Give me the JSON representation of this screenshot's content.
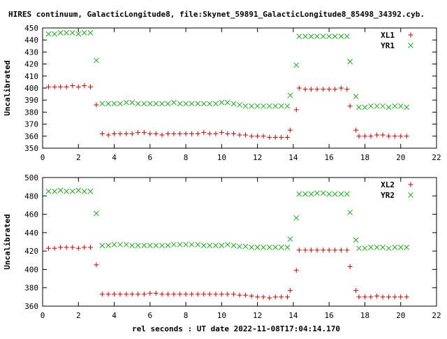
{
  "title": "HIRES continuum, GalacticLongitude8, file:Skynet_59891_GalacticLongitude8_85498_34392.cyb.",
  "xlabel": "rel seconds : UT date 2022-11-08T17:04:14.170",
  "colors": {
    "series_x": "#cc0000",
    "series_y": "#22aa22",
    "axes": "#000000"
  },
  "chart_data": [
    {
      "type": "scatter",
      "ylabel": "Uncalibrated",
      "xlim": [
        0,
        22
      ],
      "ylim": [
        350,
        450
      ],
      "xticks": [
        0,
        2,
        4,
        6,
        8,
        10,
        12,
        14,
        16,
        18,
        20,
        22
      ],
      "yticks": [
        350,
        360,
        370,
        380,
        390,
        400,
        410,
        420,
        430,
        440,
        450
      ],
      "grid": false,
      "legend_position": "top-right",
      "series": [
        {
          "name": "XL1",
          "marker": "plus",
          "color": "#cc0000",
          "points": [
            [
              0.33,
              401
            ],
            [
              0.67,
              401
            ],
            [
              1.0,
              401
            ],
            [
              1.33,
              401
            ],
            [
              1.67,
              402
            ],
            [
              2.0,
              401
            ],
            [
              2.33,
              402
            ],
            [
              2.67,
              401
            ],
            [
              3.0,
              386
            ],
            [
              3.33,
              362
            ],
            [
              3.67,
              361
            ],
            [
              4.0,
              362
            ],
            [
              4.33,
              362
            ],
            [
              4.67,
              362
            ],
            [
              5.0,
              362
            ],
            [
              5.33,
              363
            ],
            [
              5.67,
              363
            ],
            [
              6.0,
              362
            ],
            [
              6.33,
              362
            ],
            [
              6.67,
              361
            ],
            [
              7.0,
              362
            ],
            [
              7.33,
              362
            ],
            [
              7.67,
              362
            ],
            [
              8.0,
              362
            ],
            [
              8.33,
              362
            ],
            [
              8.67,
              362
            ],
            [
              9.0,
              363
            ],
            [
              9.33,
              362
            ],
            [
              9.67,
              362
            ],
            [
              10.0,
              363
            ],
            [
              10.33,
              362
            ],
            [
              10.67,
              362
            ],
            [
              11.0,
              361
            ],
            [
              11.33,
              361
            ],
            [
              11.67,
              360
            ],
            [
              12.0,
              360
            ],
            [
              12.33,
              360
            ],
            [
              12.67,
              359
            ],
            [
              13.0,
              359
            ],
            [
              13.33,
              359
            ],
            [
              13.67,
              359
            ],
            [
              13.83,
              365
            ],
            [
              14.17,
              382
            ],
            [
              14.33,
              400
            ],
            [
              14.67,
              399
            ],
            [
              15.0,
              399
            ],
            [
              15.33,
              399
            ],
            [
              15.67,
              399
            ],
            [
              16.0,
              399
            ],
            [
              16.33,
              399
            ],
            [
              16.67,
              400
            ],
            [
              17.0,
              399
            ],
            [
              17.17,
              385
            ],
            [
              17.5,
              365
            ],
            [
              17.67,
              360
            ],
            [
              18.0,
              360
            ],
            [
              18.33,
              360
            ],
            [
              18.67,
              361
            ],
            [
              19.0,
              361
            ],
            [
              19.33,
              360
            ],
            [
              19.67,
              360
            ],
            [
              20.0,
              360
            ],
            [
              20.33,
              360
            ]
          ]
        },
        {
          "name": "YR1",
          "marker": "cross",
          "color": "#22aa22",
          "points": [
            [
              0.33,
              445
            ],
            [
              0.67,
              445
            ],
            [
              1.0,
              446
            ],
            [
              1.33,
              446
            ],
            [
              1.67,
              446
            ],
            [
              2.0,
              445
            ],
            [
              2.33,
              446
            ],
            [
              2.67,
              446
            ],
            [
              3.0,
              423
            ],
            [
              3.33,
              387
            ],
            [
              3.67,
              387
            ],
            [
              4.0,
              387
            ],
            [
              4.33,
              387
            ],
            [
              4.67,
              388
            ],
            [
              5.0,
              388
            ],
            [
              5.33,
              387
            ],
            [
              5.67,
              387
            ],
            [
              6.0,
              387
            ],
            [
              6.33,
              387
            ],
            [
              6.67,
              387
            ],
            [
              7.0,
              387
            ],
            [
              7.33,
              388
            ],
            [
              7.67,
              387
            ],
            [
              8.0,
              387
            ],
            [
              8.33,
              387
            ],
            [
              8.67,
              387
            ],
            [
              9.0,
              387
            ],
            [
              9.33,
              387
            ],
            [
              9.67,
              387
            ],
            [
              10.0,
              388
            ],
            [
              10.33,
              388
            ],
            [
              10.67,
              387
            ],
            [
              11.0,
              386
            ],
            [
              11.33,
              385
            ],
            [
              11.67,
              385
            ],
            [
              12.0,
              385
            ],
            [
              12.33,
              385
            ],
            [
              12.67,
              385
            ],
            [
              13.0,
              385
            ],
            [
              13.33,
              385
            ],
            [
              13.67,
              385
            ],
            [
              13.83,
              394
            ],
            [
              14.17,
              419
            ],
            [
              14.33,
              443
            ],
            [
              14.67,
              443
            ],
            [
              15.0,
              443
            ],
            [
              15.33,
              443
            ],
            [
              15.67,
              443
            ],
            [
              16.0,
              443
            ],
            [
              16.33,
              443
            ],
            [
              16.67,
              443
            ],
            [
              17.0,
              443
            ],
            [
              17.17,
              422
            ],
            [
              17.5,
              393
            ],
            [
              17.67,
              384
            ],
            [
              18.0,
              384
            ],
            [
              18.33,
              385
            ],
            [
              18.67,
              385
            ],
            [
              19.0,
              385
            ],
            [
              19.33,
              384
            ],
            [
              19.67,
              385
            ],
            [
              20.0,
              385
            ],
            [
              20.33,
              384
            ]
          ]
        }
      ]
    },
    {
      "type": "scatter",
      "ylabel": "Uncalibrated",
      "xlim": [
        0,
        22
      ],
      "ylim": [
        360,
        500
      ],
      "xticks": [
        0,
        2,
        4,
        6,
        8,
        10,
        12,
        14,
        16,
        18,
        20,
        22
      ],
      "yticks": [
        360,
        380,
        400,
        420,
        440,
        460,
        480,
        500
      ],
      "grid": false,
      "legend_position": "top-right",
      "series": [
        {
          "name": "XL2",
          "marker": "plus",
          "color": "#cc0000",
          "points": [
            [
              0.33,
              423
            ],
            [
              0.67,
              423
            ],
            [
              1.0,
              424
            ],
            [
              1.33,
              424
            ],
            [
              1.67,
              424
            ],
            [
              2.0,
              423
            ],
            [
              2.33,
              424
            ],
            [
              2.67,
              424
            ],
            [
              3.0,
              405
            ],
            [
              3.33,
              373
            ],
            [
              3.67,
              373
            ],
            [
              4.0,
              373
            ],
            [
              4.33,
              373
            ],
            [
              4.67,
              373
            ],
            [
              5.0,
              373
            ],
            [
              5.33,
              373
            ],
            [
              5.67,
              373
            ],
            [
              6.0,
              374
            ],
            [
              6.33,
              374
            ],
            [
              6.67,
              373
            ],
            [
              7.0,
              373
            ],
            [
              7.33,
              373
            ],
            [
              7.67,
              373
            ],
            [
              8.0,
              373
            ],
            [
              8.33,
              373
            ],
            [
              8.67,
              373
            ],
            [
              9.0,
              373
            ],
            [
              9.33,
              373
            ],
            [
              9.67,
              373
            ],
            [
              10.0,
              373
            ],
            [
              10.33,
              373
            ],
            [
              10.67,
              373
            ],
            [
              11.0,
              372
            ],
            [
              11.33,
              372
            ],
            [
              11.67,
              371
            ],
            [
              12.0,
              370
            ],
            [
              12.33,
              370
            ],
            [
              12.67,
              369
            ],
            [
              13.0,
              370
            ],
            [
              13.33,
              370
            ],
            [
              13.67,
              370
            ],
            [
              13.83,
              377
            ],
            [
              14.17,
              399
            ],
            [
              14.33,
              421
            ],
            [
              14.67,
              421
            ],
            [
              15.0,
              421
            ],
            [
              15.33,
              421
            ],
            [
              15.67,
              421
            ],
            [
              16.0,
              421
            ],
            [
              16.33,
              421
            ],
            [
              16.67,
              421
            ],
            [
              17.0,
              421
            ],
            [
              17.17,
              403
            ],
            [
              17.5,
              377
            ],
            [
              17.67,
              370
            ],
            [
              18.0,
              370
            ],
            [
              18.33,
              370
            ],
            [
              18.67,
              371
            ],
            [
              19.0,
              370
            ],
            [
              19.33,
              370
            ],
            [
              19.67,
              370
            ],
            [
              20.0,
              370
            ],
            [
              20.33,
              370
            ]
          ]
        },
        {
          "name": "YR2",
          "marker": "cross",
          "color": "#22aa22",
          "points": [
            [
              0.33,
              485
            ],
            [
              0.67,
              485
            ],
            [
              1.0,
              486
            ],
            [
              1.33,
              485
            ],
            [
              1.67,
              485
            ],
            [
              2.0,
              486
            ],
            [
              2.33,
              485
            ],
            [
              2.67,
              485
            ],
            [
              3.0,
              461
            ],
            [
              3.33,
              426
            ],
            [
              3.67,
              426
            ],
            [
              4.0,
              427
            ],
            [
              4.33,
              427
            ],
            [
              4.67,
              427
            ],
            [
              5.0,
              426
            ],
            [
              5.33,
              426
            ],
            [
              5.67,
              426
            ],
            [
              6.0,
              426
            ],
            [
              6.33,
              426
            ],
            [
              6.67,
              426
            ],
            [
              7.0,
              426
            ],
            [
              7.33,
              427
            ],
            [
              7.67,
              427
            ],
            [
              8.0,
              427
            ],
            [
              8.33,
              427
            ],
            [
              8.67,
              427
            ],
            [
              9.0,
              426
            ],
            [
              9.33,
              426
            ],
            [
              9.67,
              426
            ],
            [
              10.0,
              426
            ],
            [
              10.33,
              427
            ],
            [
              10.67,
              426
            ],
            [
              11.0,
              425
            ],
            [
              11.33,
              425
            ],
            [
              11.67,
              424
            ],
            [
              12.0,
              424
            ],
            [
              12.33,
              424
            ],
            [
              12.67,
              424
            ],
            [
              13.0,
              424
            ],
            [
              13.33,
              424
            ],
            [
              13.67,
              424
            ],
            [
              13.83,
              433
            ],
            [
              14.17,
              456
            ],
            [
              14.33,
              482
            ],
            [
              14.67,
              482
            ],
            [
              15.0,
              482
            ],
            [
              15.33,
              483
            ],
            [
              15.67,
              483
            ],
            [
              16.0,
              482
            ],
            [
              16.33,
              482
            ],
            [
              16.67,
              482
            ],
            [
              17.0,
              482
            ],
            [
              17.17,
              462
            ],
            [
              17.5,
              432
            ],
            [
              17.67,
              423
            ],
            [
              18.0,
              423
            ],
            [
              18.33,
              424
            ],
            [
              18.67,
              424
            ],
            [
              19.0,
              424
            ],
            [
              19.33,
              423
            ],
            [
              19.67,
              424
            ],
            [
              20.0,
              424
            ],
            [
              20.33,
              424
            ]
          ]
        }
      ]
    }
  ]
}
